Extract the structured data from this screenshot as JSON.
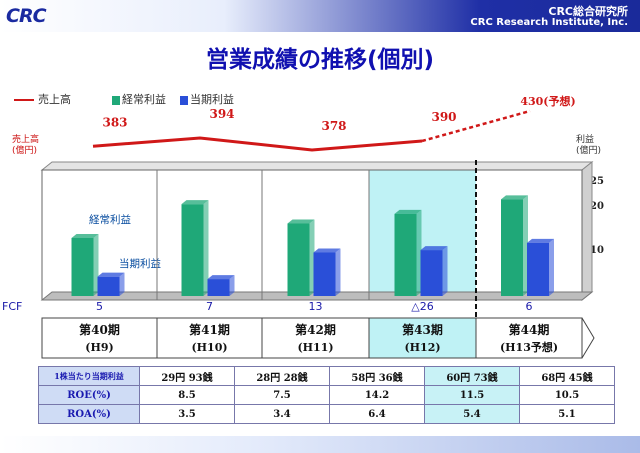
{
  "header": {
    "logo": "CRC",
    "company_jp": "CRC総合研究所",
    "company_en": "CRC Research Institute, Inc."
  },
  "title": "営業成績の推移(個別)",
  "legend": {
    "sales": "売上高",
    "ordinary": "経常利益",
    "net": "当期利益"
  },
  "axis": {
    "left_title_1": "売上高",
    "left_title_2": "(億円)",
    "right_title_1": "利益",
    "right_title_2": "(億円)"
  },
  "series_labels": {
    "ordinary": "経常利益",
    "net": "当期利益"
  },
  "fcf_label": "FCF",
  "periods": [
    {
      "label": "第40期",
      "sub": "(H9)"
    },
    {
      "label": "第41期",
      "sub": "(H10)"
    },
    {
      "label": "第42期",
      "sub": "(H11)"
    },
    {
      "label": "第43期",
      "sub": "(H12)"
    },
    {
      "label": "第44期",
      "sub": "(H13予想)"
    }
  ],
  "table": {
    "rows": [
      {
        "header": "1株当たり当期利益",
        "values": [
          "29円 93銭",
          "28円 28銭",
          "58円 36銭",
          "60円 73銭",
          "68円 45銭"
        ]
      },
      {
        "header": "ROE(%)",
        "values": [
          "8.5",
          "7.5",
          "14.2",
          "11.5",
          "10.5"
        ]
      },
      {
        "header": "ROA(%)",
        "values": [
          "3.5",
          "3.4",
          "6.4",
          "5.4",
          "5.1"
        ]
      }
    ]
  },
  "chart_data": {
    "type": "bar",
    "title": "営業成績の推移(個別)",
    "categories": [
      "第40期(H9)",
      "第41期(H10)",
      "第42期(H11)",
      "第43期(H12)",
      "第44期(H13予想)"
    ],
    "series": [
      {
        "name": "売上高",
        "type": "line",
        "axis": "left",
        "values": [
          383,
          394,
          378,
          390,
          430
        ],
        "labels": [
          "383",
          "394",
          "378",
          "390",
          "430(予想)"
        ]
      },
      {
        "name": "経常利益",
        "type": "bar",
        "axis": "right",
        "values": [
          14,
          21,
          17,
          19,
          22
        ],
        "color": "#1fa878"
      },
      {
        "name": "当期利益",
        "type": "bar",
        "axis": "right",
        "values": [
          6,
          5.5,
          11,
          11.5,
          13
        ],
        "color": "#2a4fd8"
      }
    ],
    "fcf": [
      "5",
      "7",
      "13",
      "△26",
      "6"
    ],
    "right_axis_ticks": [
      "10",
      "20",
      "25"
    ],
    "highlight_category": "第43期(H12)",
    "forecast_category": "第44期(H13予想)",
    "colors": {
      "sales_line": "#d01818",
      "ordinary": "#1fa878",
      "net": "#2a4fd8",
      "highlight": "#bff2f5"
    }
  }
}
